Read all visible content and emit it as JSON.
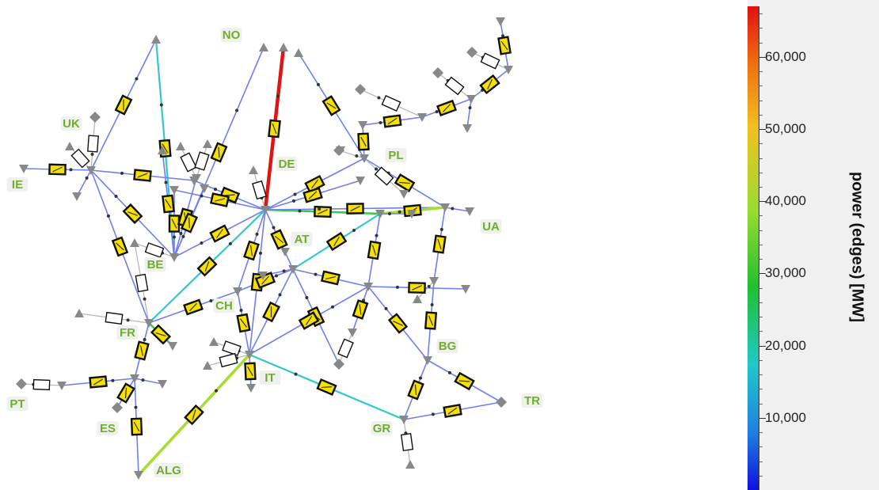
{
  "countries": [
    "NO",
    "UK",
    "IE",
    "DE",
    "PL",
    "UA",
    "AT",
    "BE",
    "CH",
    "FR",
    "PT",
    "ES",
    "IT",
    "BG",
    "TR",
    "GR",
    "ALG"
  ],
  "legend": {
    "title": "power (edges) [MW]",
    "min": 0,
    "max": 67000,
    "ticks": [
      {
        "value": 10000,
        "label": "10,000"
      },
      {
        "value": 20000,
        "label": "20,000"
      },
      {
        "value": 30000,
        "label": "30,000"
      },
      {
        "value": 40000,
        "label": "40,000"
      },
      {
        "value": 50000,
        "label": "50,000"
      },
      {
        "value": 60000,
        "label": "60,000"
      }
    ],
    "colors": [
      "#1010e0",
      "#2080e0",
      "#20c8c8",
      "#20c030",
      "#9adc30",
      "#f0c020",
      "#f07010",
      "#e01010"
    ]
  },
  "colors": {
    "label_green": "#6fae2c",
    "node_gray": "#808080",
    "edge_blue": "#6a7cf0",
    "edge_gray": "#b0b0b0",
    "box_yellow": "#f5e000"
  }
}
